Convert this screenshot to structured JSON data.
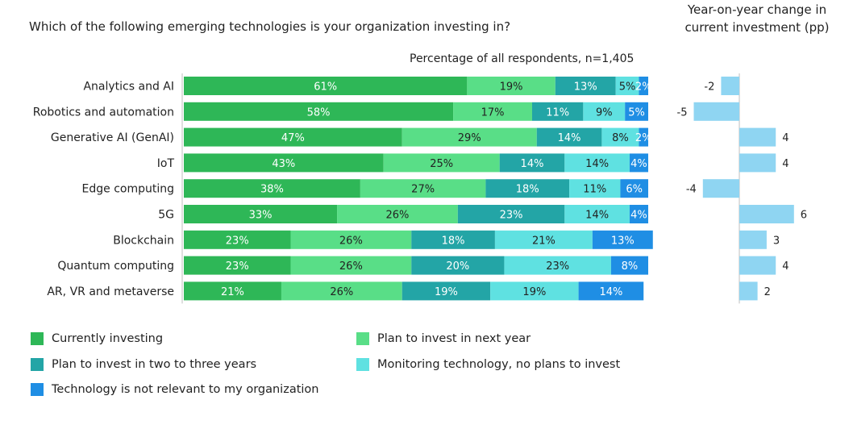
{
  "page": {
    "question": "Which of the following emerging technologies is your organization investing in?",
    "subtitle": "Percentage of all respondents, n=1,405",
    "yoy_title": "Year-on-year change in current investment (pp)"
  },
  "colors": {
    "currently": "#2eb757",
    "next_year": "#59de87",
    "two_three": "#23a5a6",
    "monitoring": "#5fe1e1",
    "not_relevant": "#1f8ee4",
    "yoy_bar": "#8fd5f2",
    "axis": "#bfbfbf"
  },
  "chart_data": [
    {
      "type": "bar",
      "orientation": "horizontal",
      "stacked": true,
      "title": "Percentage of all respondents, n=1,405",
      "categories": [
        "Analytics and AI",
        "Robotics and automation",
        "Generative AI (GenAI)",
        "IoT",
        "Edge computing",
        "5G",
        "Blockchain",
        "Quantum computing",
        "AR, VR and metaverse"
      ],
      "series": [
        {
          "name": "Currently investing",
          "color": "#2eb757",
          "values": [
            61,
            58,
            47,
            43,
            38,
            33,
            23,
            23,
            21
          ]
        },
        {
          "name": "Plan to invest in next year",
          "color": "#59de87",
          "values": [
            19,
            17,
            29,
            25,
            27,
            26,
            26,
            26,
            26
          ]
        },
        {
          "name": "Plan to invest in two to three years",
          "color": "#23a5a6",
          "values": [
            13,
            11,
            14,
            14,
            18,
            23,
            18,
            20,
            19
          ]
        },
        {
          "name": "Monitoring technology, no plans to invest",
          "color": "#5fe1e1",
          "values": [
            5,
            9,
            8,
            14,
            11,
            14,
            21,
            23,
            19
          ]
        },
        {
          "name": "Technology is not relevant to my organization",
          "color": "#1f8ee4",
          "values": [
            2,
            5,
            2,
            4,
            6,
            4,
            13,
            8,
            14
          ]
        }
      ],
      "data_label_suffix": "%",
      "legend_position": "bottom-left"
    },
    {
      "type": "bar",
      "orientation": "horizontal",
      "title": "Year-on-year change in current investment (pp)",
      "categories": [
        "Analytics and AI",
        "Robotics and automation",
        "Generative AI (GenAI)",
        "IoT",
        "Edge computing",
        "5G",
        "Blockchain",
        "Quantum computing",
        "AR, VR and metaverse"
      ],
      "values": [
        -2,
        -5,
        4,
        4,
        -4,
        6,
        3,
        4,
        2
      ],
      "color": "#8fd5f2"
    }
  ]
}
